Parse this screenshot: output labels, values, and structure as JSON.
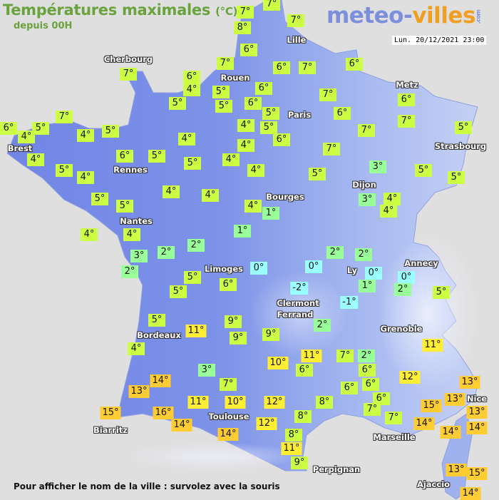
{
  "header": {
    "title": "Températures maximales",
    "unit": "(°C)",
    "subtitle": "depuis 00H"
  },
  "logo": {
    "part1": "meteo-",
    "part2": "villes",
    "suffix": ".com"
  },
  "timestamp": "Lun. 20/12/2021 23:00",
  "footer": "Pour afficher le nom de la ville : survolez avec la souris",
  "colors": {
    "sea": "#e0dfe0",
    "land_west": "#7388e6",
    "land_east": "#aabbf0",
    "title_green": "#6aa23e",
    "cold_cyan": "#99ffff",
    "cool_green": "#99ff99",
    "mild_lime": "#ccff44",
    "warm_yellow": "#ffee33",
    "hot_orange": "#ffcc33"
  },
  "cities": [
    "Cherbourg",
    "Rouen",
    "Lille",
    "Paris",
    "Metz",
    "Strasbourg",
    "Brest",
    "Rennes",
    "Nantes",
    "Bourges",
    "Dijon",
    "Limoges",
    "Ly",
    "Annecy",
    "Clermont",
    "Ferrand",
    "Grenoble",
    "Bordeaux",
    "Toulouse",
    "Biarritz",
    "Perpignan",
    "Marseille",
    "Nice",
    "Ajaccio"
  ],
  "temperatures": [
    "7°",
    "7°",
    "8°",
    "7°",
    "6°",
    "7°",
    "6°",
    "4°",
    "5°",
    "5°",
    "5°",
    "6°",
    "6°",
    "5°",
    "4°",
    "5°",
    "6°",
    "4°",
    "4°",
    "5°",
    "4°",
    "4°",
    "6°",
    "7°",
    "6°",
    "7°",
    "6°",
    "7°",
    "7°",
    "5°",
    "3°",
    "5°",
    "5°",
    "5°",
    "6°",
    "7°",
    "3°",
    "4°",
    "4°",
    "4°",
    "1°",
    "1°",
    "2°",
    "2°",
    "2°",
    "2°",
    "7°",
    "7°",
    "6°",
    "4°",
    "5°",
    "4°",
    "5°",
    "4°",
    "5°",
    "4°",
    "6°",
    "5°",
    "5°",
    "5°",
    "4°",
    "4°",
    "4°",
    "4°",
    "3°",
    "2°",
    "0°",
    "0°",
    "-2°",
    "-1°",
    "0°",
    "1°",
    "0°",
    "2°",
    "5°",
    "5°",
    "6°",
    "5°",
    "2°",
    "9°",
    "9°",
    "9°",
    "11°",
    "5°",
    "11°",
    "4°",
    "11°",
    "7°",
    "2°",
    "10°",
    "6°",
    "6°",
    "12°",
    "3°",
    "14°",
    "13°",
    "7°",
    "6°",
    "6°",
    "13°",
    "13°",
    "6°",
    "11°",
    "10°",
    "12°",
    "8°",
    "15°",
    "13°",
    "7°",
    "7°",
    "15°",
    "16°",
    "14°",
    "8°",
    "14°",
    "14°",
    "12°",
    "14°",
    "14°",
    "8°",
    "11°",
    "9°",
    "13°",
    "15°",
    "14°"
  ]
}
